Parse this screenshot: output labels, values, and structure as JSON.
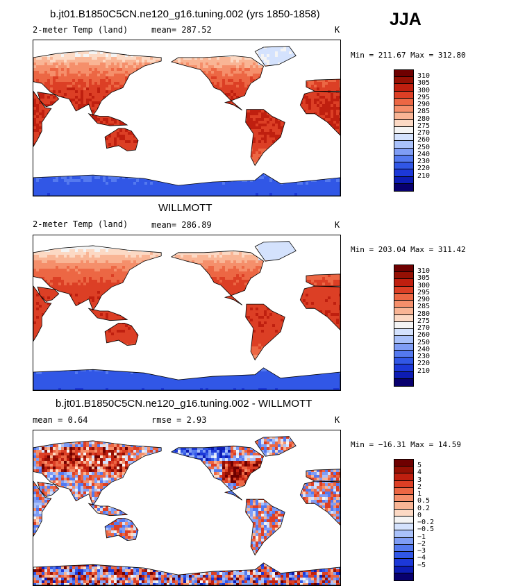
{
  "season": "JJA",
  "palettes": {
    "abs": [
      "#08006e",
      "#0d1cb4",
      "#1c38d8",
      "#3157e6",
      "#5479ef",
      "#7f9df5",
      "#a9c1fa",
      "#d4e2fd",
      "#f4f4f4",
      "#fcd9c4",
      "#f9b595",
      "#f58f6b",
      "#ec6744",
      "#dc3f25",
      "#bf1f0f",
      "#951004",
      "#6e0000"
    ],
    "diff": [
      "#08006e",
      "#0d1cb4",
      "#1c38d8",
      "#3157e6",
      "#5479ef",
      "#7f9df5",
      "#a9c1fa",
      "#d4e2fd",
      "#f4f4f4",
      "#fcd9c4",
      "#f9b595",
      "#f58f6b",
      "#ec6744",
      "#dc3f25",
      "#bf1f0f",
      "#951004",
      "#6e0000"
    ]
  },
  "panels": [
    {
      "title": "b.jt01.B1850C5CN.ne120_g16.tuning.002 (yrs 1850-1858)",
      "variable": "2-meter Temp (land)",
      "stat": "mean= 287.52",
      "units": "K",
      "minmax": "Min = 211.67 Max = 312.80",
      "cbar_labels": [
        "310",
        "305",
        "300",
        "295",
        "290",
        "285",
        "280",
        "275",
        "270",
        "260",
        "250",
        "240",
        "230",
        "220",
        "210"
      ],
      "palette": "abs",
      "field": "model"
    },
    {
      "title": "WILLMOTT",
      "variable": "2-meter Temp (land)",
      "stat": "mean= 286.89",
      "units": "K",
      "minmax": "Min = 203.04 Max = 311.42",
      "cbar_labels": [
        "310",
        "305",
        "300",
        "295",
        "290",
        "285",
        "280",
        "275",
        "270",
        "260",
        "250",
        "240",
        "230",
        "220",
        "210"
      ],
      "palette": "abs",
      "field": "obs"
    },
    {
      "title": "b.jt01.B1850C5CN.ne120_g16.tuning.002 - WILLMOTT",
      "variable": "mean =   0.64",
      "stat": "rmse =   2.93",
      "units": "K",
      "minmax": "Min = −16.31 Max =  14.59",
      "cbar_labels": [
        "5",
        "4",
        "3",
        "2",
        "1",
        "0.5",
        "0.2",
        "0",
        "−0.2",
        "−0.5",
        "−1",
        "−2",
        "−3",
        "−4",
        "−5"
      ],
      "palette": "diff",
      "field": "diff"
    }
  ]
}
